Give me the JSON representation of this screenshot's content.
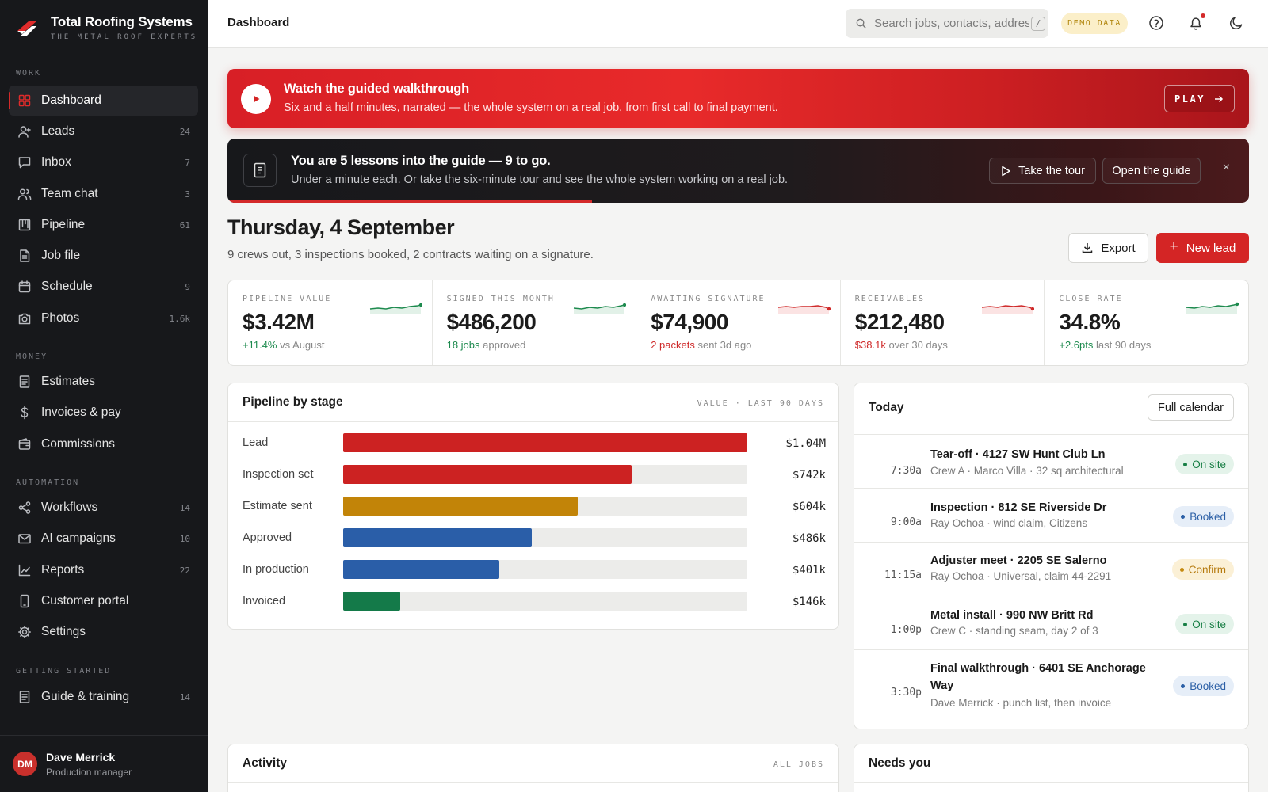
{
  "brand": {
    "name": "Total Roofing Systems",
    "tagline": "THE METAL ROOF EXPERTS"
  },
  "sidebar": {
    "sections": {
      "work": "WORK",
      "money": "MONEY",
      "automation": "AUTOMATION",
      "getting_started": "GETTING STARTED"
    },
    "items": [
      {
        "label": "Dashboard",
        "count": "",
        "icon": "grid-icon",
        "active": true
      },
      {
        "label": "Leads",
        "count": "24",
        "icon": "user-plus-icon"
      },
      {
        "label": "Inbox",
        "count": "7",
        "icon": "message-square-icon"
      },
      {
        "label": "Team chat",
        "count": "3",
        "icon": "users-icon"
      },
      {
        "label": "Pipeline",
        "count": "61",
        "icon": "kanban-icon"
      },
      {
        "label": "Job file",
        "count": "",
        "icon": "file-icon"
      },
      {
        "label": "Schedule",
        "count": "9",
        "icon": "calendar-icon"
      },
      {
        "label": "Photos",
        "count": "1.6k",
        "icon": "camera-icon"
      },
      {
        "label": "Estimates",
        "count": "",
        "icon": "receipt-icon"
      },
      {
        "label": "Invoices & pay",
        "count": "",
        "icon": "dollar-icon"
      },
      {
        "label": "Commissions",
        "count": "",
        "icon": "wallet-icon"
      },
      {
        "label": "Workflows",
        "count": "14",
        "icon": "share-icon"
      },
      {
        "label": "AI campaigns",
        "count": "10",
        "icon": "mail-icon"
      },
      {
        "label": "Reports",
        "count": "22",
        "icon": "line-chart-icon"
      },
      {
        "label": "Customer portal",
        "count": "",
        "icon": "smartphone-icon"
      },
      {
        "label": "Settings",
        "count": "",
        "icon": "gear-icon"
      },
      {
        "label": "Guide & training",
        "count": "14",
        "icon": "book-icon"
      }
    ],
    "user": {
      "initials": "DM",
      "name": "Dave Merrick",
      "role": "Production manager"
    }
  },
  "topbar": {
    "title": "Dashboard",
    "search_placeholder": "Search jobs, contacts, addresses",
    "search_kbd": "/",
    "demo_badge": "DEMO DATA"
  },
  "walkthrough": {
    "title": "Watch the guided walkthrough",
    "subtitle": "Six and a half minutes, narrated — the whole system on a real job, from first call to final payment.",
    "play_label": "PLAY"
  },
  "guide": {
    "title": "You are 5 lessons into the guide — 9 to go.",
    "subtitle": "Under a minute each. Or take the six-minute tour and see the whole system working on a real job.",
    "tour_label": "Take the tour",
    "open_label": "Open the guide",
    "close": "×",
    "progress": 0.357
  },
  "header": {
    "date": "Thursday, 4 September",
    "summary": "9 crews out, 3 inspections booked, 2 contracts waiting on a signature.",
    "export_label": "Export",
    "new_lead_label": "New lead"
  },
  "kpis": [
    {
      "label": "PIPELINE VALUE",
      "value": "$3.42M",
      "delta": "+11.4%",
      "delta_tone": "green",
      "note": "vs August",
      "trend": "green"
    },
    {
      "label": "SIGNED THIS MONTH",
      "value": "$486,200",
      "delta": "18 jobs",
      "delta_tone": "green",
      "note": "approved",
      "trend": "green"
    },
    {
      "label": "AWAITING SIGNATURE",
      "value": "$74,900",
      "delta": "2 packets",
      "delta_tone": "red",
      "note": "sent 3d ago",
      "trend": "red"
    },
    {
      "label": "RECEIVABLES",
      "value": "$212,480",
      "delta": "$38.1k",
      "delta_tone": "red",
      "note": "over 30 days",
      "trend": "red"
    },
    {
      "label": "CLOSE RATE",
      "value": "34.8%",
      "delta": "+2.6pts",
      "delta_tone": "green",
      "note": "last 90 days",
      "trend": "green"
    }
  ],
  "pipeline": {
    "title": "Pipeline by stage",
    "meta": "VALUE · LAST 90 DAYS",
    "stages": [
      {
        "label": "Lead",
        "value": "$1.04M",
        "amount": 1040,
        "color": "#cc2222"
      },
      {
        "label": "Inspection set",
        "value": "$742k",
        "amount": 742,
        "color": "#cc2222"
      },
      {
        "label": "Estimate sent",
        "value": "$604k",
        "amount": 604,
        "color": "#c28408"
      },
      {
        "label": "Approved",
        "value": "$486k",
        "amount": 486,
        "color": "#2a5ea8"
      },
      {
        "label": "In production",
        "value": "$401k",
        "amount": 401,
        "color": "#2a5ea8"
      },
      {
        "label": "Invoiced",
        "value": "$146k",
        "amount": 146,
        "color": "#147a49"
      }
    ]
  },
  "today": {
    "title": "Today",
    "calendar_label": "Full calendar",
    "items": [
      {
        "time": "7:30a",
        "title": "Tear-off · 4127 SW Hunt Club Ln",
        "sub": "Crew A · Marco Villa · 32 sq architectural",
        "status": "On site",
        "tone": "onsite"
      },
      {
        "time": "9:00a",
        "title": "Inspection · 812 SE Riverside Dr",
        "sub": "Ray Ochoa · wind claim, Citizens",
        "status": "Booked",
        "tone": "booked"
      },
      {
        "time": "11:15a",
        "title": "Adjuster meet · 2205 SE Salerno",
        "sub": "Ray Ochoa · Universal, claim 44-2291",
        "status": "Confirm",
        "tone": "confirm"
      },
      {
        "time": "1:00p",
        "title": "Metal install · 990 NW Britt Rd",
        "sub": "Crew C · standing seam, day 2 of 3",
        "status": "On site",
        "tone": "onsite"
      },
      {
        "time": "3:30p",
        "title": "Final walkthrough · 6401 SE Anchorage Way",
        "sub": "Dave Merrick · punch list, then invoice",
        "status": "Booked",
        "tone": "booked"
      }
    ]
  },
  "activity": {
    "title": "Activity",
    "meta": "ALL JOBS"
  },
  "needs_you": {
    "title": "Needs you"
  }
}
